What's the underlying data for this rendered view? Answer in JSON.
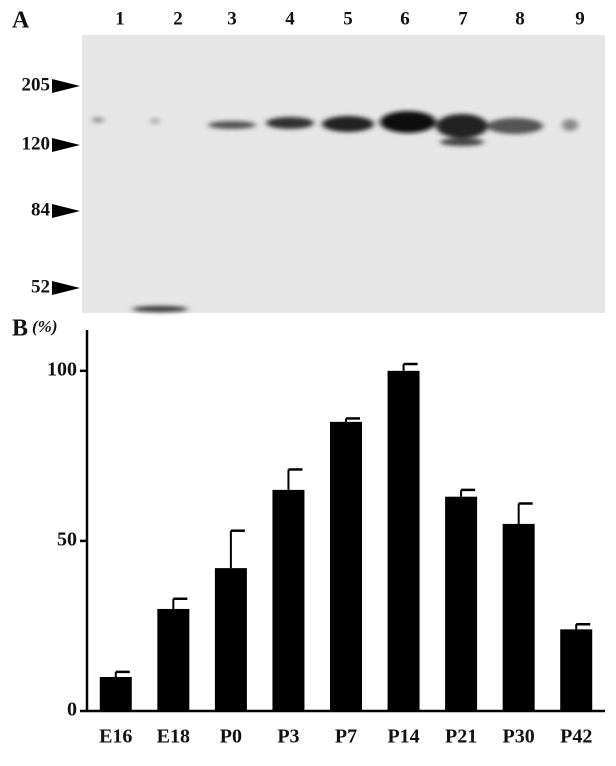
{
  "blot": {
    "panel_label": "A",
    "lanes": [
      "1",
      "2",
      "3",
      "4",
      "5",
      "6",
      "7",
      "8",
      "9"
    ],
    "markers": [
      "205",
      "120",
      "84",
      "52"
    ]
  },
  "chart_data": {
    "type": "bar",
    "panel_label": "B",
    "ylabel": "(%)",
    "categories": [
      "E16",
      "E18",
      "P0",
      "P3",
      "P7",
      "P14",
      "P21",
      "P30",
      "P42"
    ],
    "values": [
      10,
      30,
      42,
      65,
      85,
      100,
      63,
      55,
      24
    ],
    "errors": [
      1.5,
      3,
      11,
      6,
      1,
      2,
      2,
      6,
      1.5
    ],
    "color": "#000000",
    "ylim": [
      0,
      112
    ],
    "yticks": [
      0,
      50,
      100
    ]
  }
}
